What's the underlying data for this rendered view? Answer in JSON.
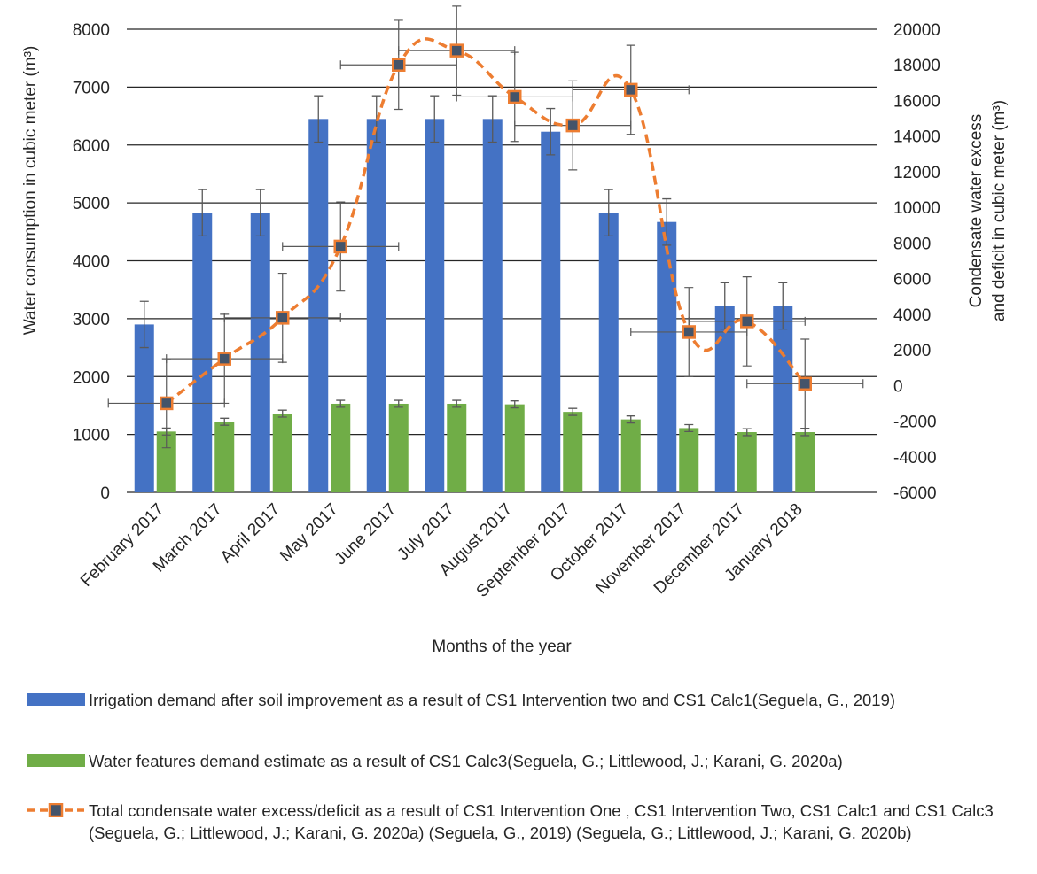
{
  "chart_data": {
    "type": "bar+line",
    "categories": [
      "February 2017",
      "March 2017",
      "April 2017",
      "May 2017",
      "June 2017",
      "July 2017",
      "August 2017",
      "September 2017",
      "October 2017",
      "November 2017",
      "December 2017",
      "January 2018"
    ],
    "xlabel": "Months of the year",
    "ylabel_left": "Water consumption in cubic meter (m³)",
    "ylabel_right_line1": "Condensate water excess",
    "ylabel_right_line2": "and deficit in cubic meter (m³)",
    "ylim_left": [
      0,
      8000
    ],
    "ylim_right": [
      -6000,
      20000
    ],
    "yticks_left": [
      "0",
      "1000",
      "2000",
      "3000",
      "4000",
      "5000",
      "6000",
      "7000",
      "8000"
    ],
    "yticks_right": [
      "-6000",
      "-4000",
      "-2000",
      "0",
      "2000",
      "4000",
      "6000",
      "8000",
      "10000",
      "12000",
      "14000",
      "16000",
      "18000",
      "20000"
    ],
    "gridlines": "major horizontal (left axis)",
    "series": [
      {
        "name": "Irrigation demand after soil improvement as a result of CS1 Intervention two and CS1 Calc1",
        "axis": "left",
        "kind": "bar",
        "color": "#4472C4",
        "values": [
          2900,
          4830,
          4830,
          6450,
          6450,
          6450,
          6450,
          6230,
          4830,
          4670,
          3220,
          3220
        ],
        "error": [
          400,
          400,
          400,
          400,
          400,
          400,
          400,
          400,
          400,
          400,
          400,
          400
        ]
      },
      {
        "name": "Water features demand estimate as a result of CS1 Calc3",
        "axis": "left",
        "kind": "bar",
        "color": "#70AD47",
        "values": [
          1050,
          1220,
          1360,
          1530,
          1530,
          1530,
          1520,
          1390,
          1260,
          1110,
          1040,
          1040
        ],
        "error": [
          60,
          60,
          60,
          60,
          60,
          60,
          60,
          60,
          60,
          60,
          60,
          60
        ]
      },
      {
        "name": "Total condensate water excess/deficit as a result of CS1 Intervention One , CS1 Intervention Two, CS1 Calc1 and CS1 Calc3",
        "axis": "right",
        "kind": "line",
        "color": "#ED7D31",
        "marker_color": "#44546A",
        "values": [
          -1000,
          1500,
          3800,
          7800,
          18000,
          18800,
          16200,
          14600,
          16600,
          3000,
          3600,
          100
        ],
        "y_error": [
          2500,
          2500,
          2500,
          2500,
          2500,
          2500,
          2500,
          2500,
          2500,
          2500,
          2500,
          2500
        ],
        "x_error_months": [
          1,
          1,
          1,
          1,
          1,
          1,
          1,
          1,
          1,
          1,
          1,
          1
        ]
      }
    ]
  },
  "legend": {
    "item1": "Irrigation demand after soil improvement as a result of CS1 Intervention two and CS1 Calc1(Seguela, G., 2019)",
    "item2": "Water features demand estimate as a result of CS1 Calc3(Seguela, G.; Littlewood, J.; Karani, G.  2020a)",
    "item3": "Total condensate water excess/deficit as a result of CS1 Intervention One , CS1 Intervention Two, CS1 Calc1 and CS1 Calc3  (Seguela, G.; Littlewood, J.; Karani, G.  2020a) (Seguela, G., 2019) (Seguela, G.; Littlewood, J.; Karani, G.  2020b)"
  }
}
